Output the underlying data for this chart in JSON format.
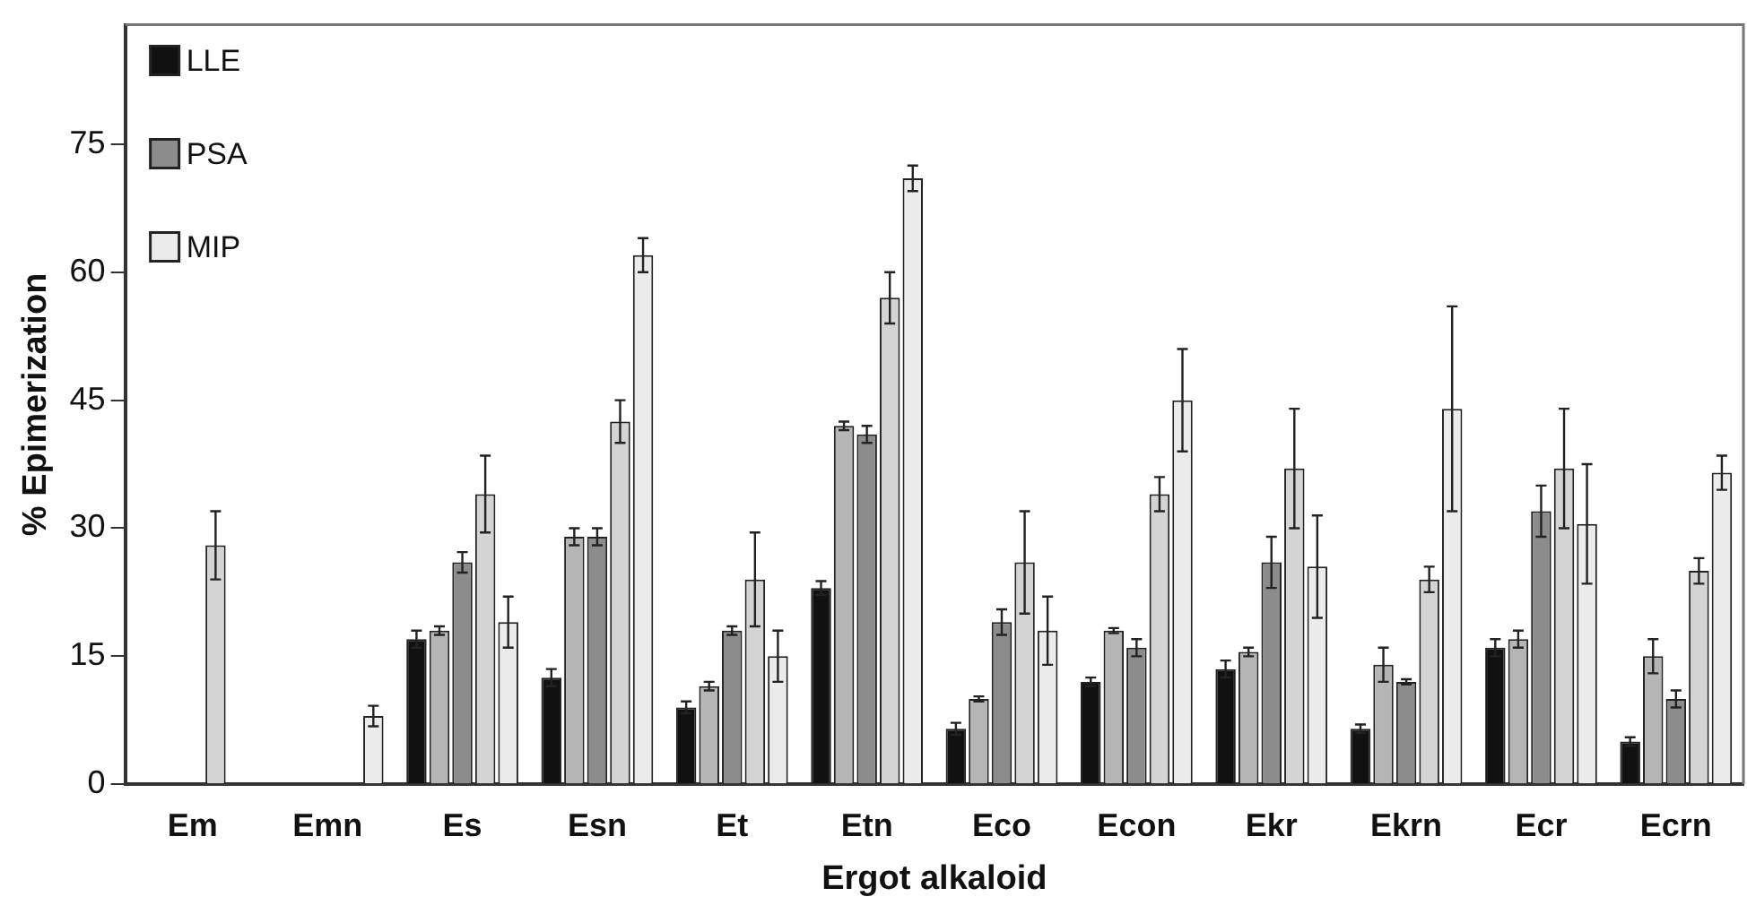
{
  "chart_data": {
    "type": "bar",
    "xlabel": "Ergot alkaloid",
    "ylabel": "% Epimerization",
    "categories": [
      "Em",
      "Emn",
      "Es",
      "Esn",
      "Et",
      "Etn",
      "Eco",
      "Econ",
      "Ekr",
      "Ekrn",
      "Ecr",
      "Ecrn"
    ],
    "series": [
      {
        "name": "LLE",
        "color": "#111111",
        "values": [
          0,
          0,
          17,
          12.5,
          9,
          23,
          6.5,
          12,
          13.5,
          6.5,
          16,
          5
        ],
        "errors": [
          null,
          null,
          1,
          1,
          0.7,
          0.8,
          0.7,
          0.5,
          1,
          0.5,
          1,
          0.5
        ]
      },
      {
        "color": "#b5b5b5",
        "values": [
          0,
          0,
          18,
          29,
          11.5,
          42,
          10,
          18,
          15.5,
          14,
          17,
          15
        ],
        "errors": [
          null,
          null,
          0.5,
          1,
          0.5,
          0.5,
          0.3,
          0.3,
          0.5,
          2,
          1,
          2
        ]
      },
      {
        "name": "PSA",
        "color": "#8c8c8c",
        "values": [
          0,
          0,
          26,
          29,
          18,
          41,
          19,
          16,
          26,
          12,
          32,
          10
        ],
        "errors": [
          null,
          null,
          1.2,
          1,
          0.5,
          1,
          1.5,
          1,
          3,
          0.3,
          3,
          1
        ]
      },
      {
        "color": "#d4d4d4",
        "values": [
          28,
          0,
          34,
          42.5,
          24,
          57,
          26,
          34,
          37,
          24,
          37,
          25
        ],
        "errors": [
          4,
          null,
          4.5,
          2.5,
          5.5,
          3,
          6,
          2,
          7,
          1.5,
          7,
          1.5
        ]
      },
      {
        "name": "MIP",
        "color": "#ebebeb",
        "values": [
          0,
          8,
          19,
          62,
          15,
          71,
          18,
          45,
          25.5,
          44,
          30.5,
          36.5
        ],
        "errors": [
          null,
          1.2,
          3,
          2,
          3,
          1.5,
          4,
          6,
          6,
          12,
          7,
          2
        ]
      }
    ],
    "ylim": [
      0,
      89
    ],
    "yticks": [
      0,
      15,
      30,
      45,
      60,
      75
    ],
    "grid": false,
    "legend": "top left"
  }
}
